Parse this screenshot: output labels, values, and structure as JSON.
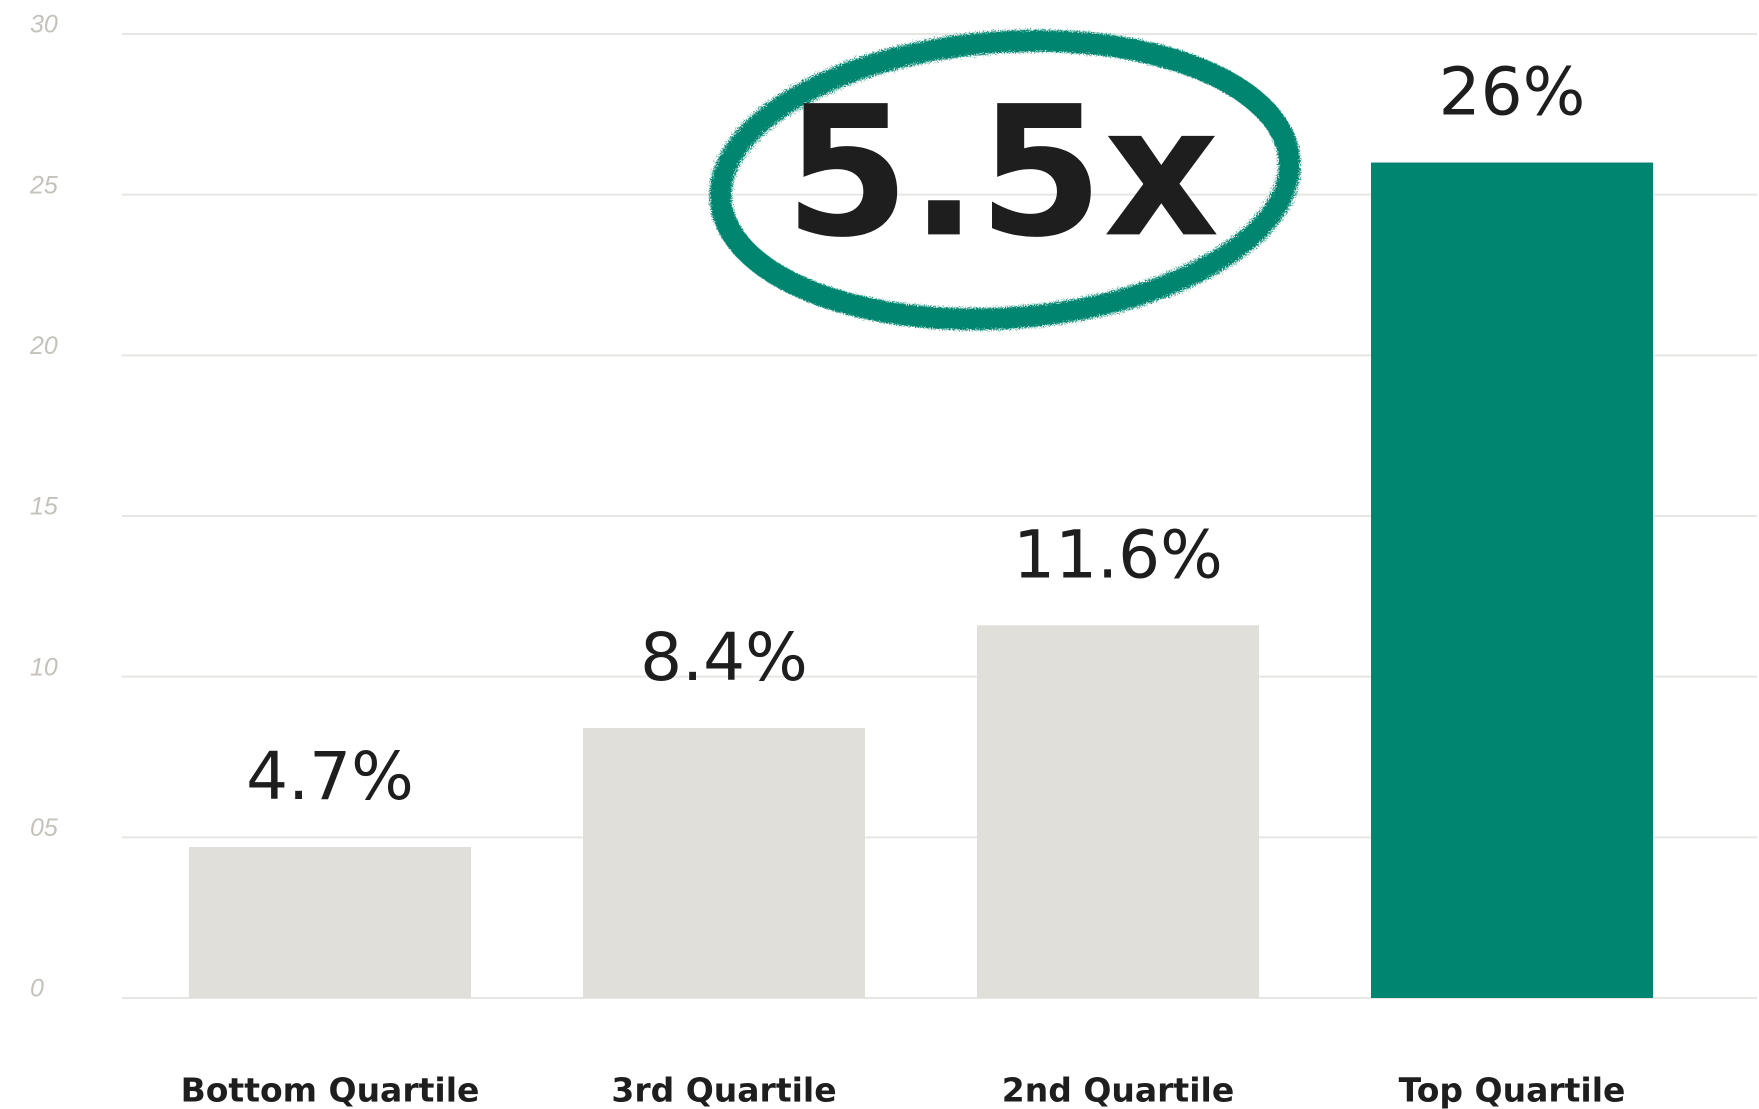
{
  "chart_data": {
    "type": "bar",
    "categories": [
      "Bottom Quartile",
      "3rd Quartile",
      "2nd Quartile",
      "Top Quartile"
    ],
    "values": [
      4.7,
      8.4,
      11.6,
      26
    ],
    "value_labels": [
      "4.7%",
      "8.4%",
      "11.6%",
      "26%"
    ],
    "colors": [
      "#e0dfda",
      "#e0dfda",
      "#e0dfda",
      "#008670"
    ],
    "ylim": [
      0,
      30
    ],
    "yticks": [
      0,
      {
        "value": 5,
        "label": "05"
      },
      10,
      15,
      20,
      25,
      30
    ],
    "grid": true,
    "annotation": "5.5x"
  }
}
